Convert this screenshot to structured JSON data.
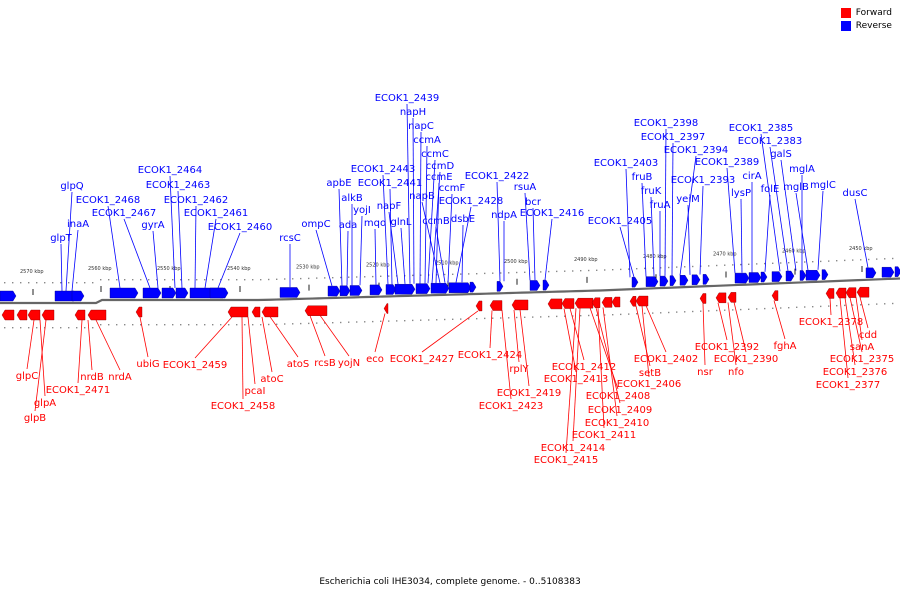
{
  "legend": {
    "forward_label": "Forward",
    "reverse_label": "Reverse",
    "forward_color": "#ff0000",
    "reverse_color": "#0000ff"
  },
  "caption": "Escherichia coli IHE3034, complete genome. - 0..5108383",
  "ticks": [
    "2570 kbp",
    "2560 kbp",
    "2550 kbp",
    "2540 kbp",
    "2530 kbp",
    "2520 kbp",
    "2510 kbp",
    "2500 kbp",
    "2490 kbp",
    "2480 kbp",
    "2470 kbp",
    "2460 kbp",
    "2450 kbp"
  ],
  "reverse_genes": [
    "glpT",
    "glpQ",
    "inaA",
    "ECOK1_2468",
    "ECOK1_2467",
    "gyrA",
    "ECOK1_2464",
    "ECOK1_2463",
    "ECOK1_2462",
    "ECOK1_2461",
    "ECOK1_2460",
    "rcsC",
    "ompC",
    "apbE",
    "ada",
    "alkB",
    "yojI",
    "mqo",
    "ECOK1_2443",
    "ECOK1_2441",
    "napF",
    "glnL",
    "ECOK1_2439",
    "napH",
    "napC",
    "ccmA",
    "ccmC",
    "ccmD",
    "ccmE",
    "napB",
    "ccmB",
    "ccmF",
    "ECOK1_2428",
    "dsbE",
    "ECOK1_2422",
    "ndpA",
    "rsuA",
    "bcr",
    "ECOK1_2416",
    "ECOK1_2405",
    "ECOK1_2403",
    "fruB",
    "fruK",
    "fruA",
    "ECOK1_2398",
    "ECOK1_2397",
    "ECOK1_2394",
    "yeiM",
    "ECOK1_2393",
    "ECOK1_2389",
    "lysP",
    "cirA",
    "folE",
    "ECOK1_2385",
    "ECOK1_2383",
    "galS",
    "mglA",
    "mglB",
    "mglC",
    "dusC"
  ],
  "forward_genes": [
    "glpC",
    "glpA",
    "glpB",
    "ECOK1_2471",
    "nrdB",
    "nrdA",
    "ubiG",
    "ECOK1_2459",
    "ECOK1_2458",
    "pcaI",
    "atoC",
    "atoS",
    "rcsB",
    "yojN",
    "eco",
    "ECOK1_2427",
    "ECOK1_2424",
    "rplY",
    "ECOK1_2419",
    "ECOK1_2423",
    "ECOK1_2412",
    "ECOK1_2413",
    "ECOK1_2408",
    "ECOK1_2409",
    "ECOK1_2410",
    "ECOK1_2411",
    "ECOK1_2414",
    "ECOK1_2415",
    "setB",
    "ECOK1_2406",
    "ECOK1_2402",
    "nsr",
    "ECOK1_2392",
    "nfo",
    "ECOK1_2390",
    "fghA",
    "ECOK1_2378",
    "cdd",
    "sanA",
    "ECOK1_2375",
    "ECOK1_2376",
    "ECOK1_2377"
  ]
}
